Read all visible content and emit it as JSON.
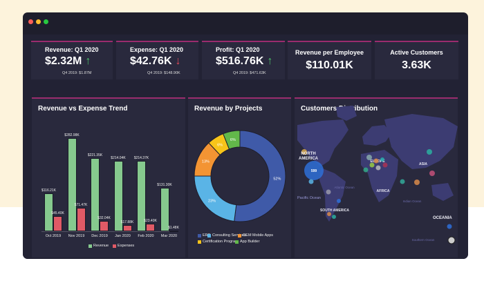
{
  "window": {
    "dots": [
      "#ff5f57",
      "#febc2e",
      "#28c840"
    ]
  },
  "kpis": [
    {
      "title": "Revenue: Q1 2020",
      "value": "$2.32M",
      "trend": "up",
      "sub": "Q4 2019: $1.87M"
    },
    {
      "title": "Expense: Q1 2020",
      "value": "$42.76K",
      "trend": "down",
      "sub": "Q4 2019: $148.90K"
    },
    {
      "title": "Profit: Q1 2020",
      "value": "$516.76K",
      "trend": "up",
      "sub": "Q4 2019: $471.63K"
    },
    {
      "title": "Revenue per Employee",
      "value": "$110.01K"
    },
    {
      "title": "Active Customers",
      "value": "3.63K"
    }
  ],
  "colors": {
    "up": "#4cc36a",
    "down": "#e04a5a",
    "accent": "#9b2c6e"
  },
  "chart_data": [
    {
      "type": "bar",
      "title": "Revenue vs Expense Trend",
      "categories": [
        "Oct 2019",
        "Nov 2019",
        "Dec 2019",
        "Jan 2020",
        "Feb 2020",
        "Mar 2020"
      ],
      "series": [
        {
          "name": "Revenue",
          "color": "#86c98e",
          "values": [
            116.21,
            282.98,
            221.35,
            214.04,
            214.37,
            131.3
          ],
          "labels": [
            "$116.21K",
            "$282.98K",
            "$221.35K",
            "$214.04K",
            "$214.37K",
            "$131.30K"
          ]
        },
        {
          "name": "Expenses",
          "color": "#e05a66",
          "values": [
            45.4,
            71.47,
            32.04,
            17.88,
            23.4,
            1.48
          ],
          "labels": [
            "$45.40K",
            "$71.47K",
            "$32.04K",
            "$17.88K",
            "$23.40K",
            "$1.48K"
          ]
        }
      ]
    },
    {
      "type": "pie",
      "title": "Revenue by Projects",
      "donut": true,
      "slices": [
        {
          "name": "ERP",
          "value": 52,
          "label": "52%",
          "color": "#3f5aa8"
        },
        {
          "name": "Consulting Services",
          "value": 23,
          "label": "23%",
          "color": "#5ab4e6"
        },
        {
          "name": "OEM Mobile Apps",
          "value": 13,
          "label": "13%",
          "color": "#f39433"
        },
        {
          "name": "Certification Program",
          "value": 6,
          "label": "6%",
          "color": "#f7c41a"
        },
        {
          "name": "App Builder",
          "value": 6,
          "label": "6%",
          "color": "#62b84a"
        }
      ]
    }
  ],
  "map": {
    "title": "Customers Distribution",
    "regions": [
      "NORTH AMERICA",
      "EUROPE",
      "ASIA",
      "AFRICA",
      "SOUTH AMERICA",
      "OCEANIA"
    ],
    "oceans": [
      "Atlantic Ocean",
      "Pacific Ocean",
      "Indian Ocean",
      "Southern Ocean"
    ],
    "bubble_label": "599"
  }
}
